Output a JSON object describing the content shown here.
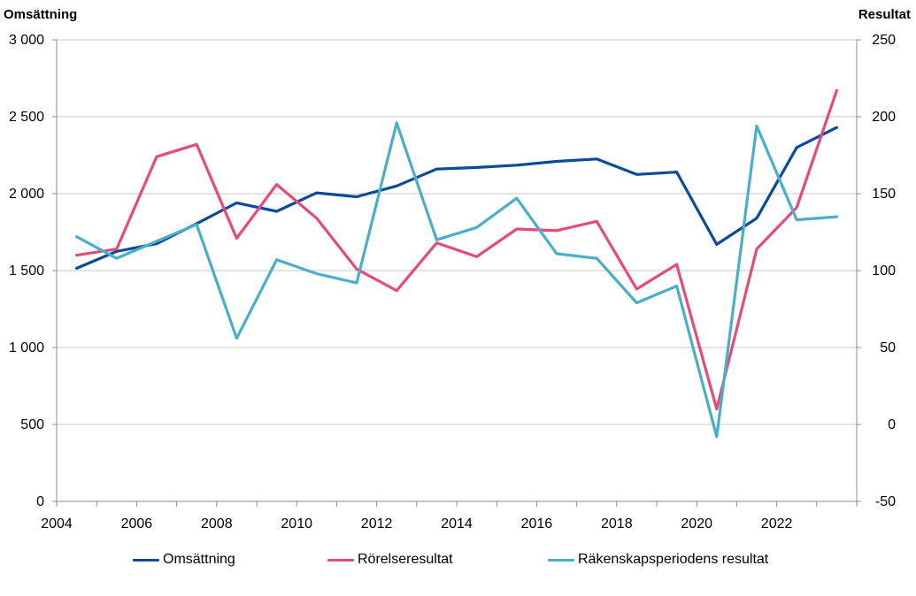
{
  "chart_data": {
    "type": "line",
    "title": "",
    "ylabel_left": "Omsättning",
    "ylabel_right": "Resultat",
    "ylim_left": [
      0,
      3000
    ],
    "ylim_right": [
      -50,
      250
    ],
    "yticks_left": [
      "0",
      "500",
      "1 000",
      "1 500",
      "2 000",
      "2 500",
      "3 000"
    ],
    "yticks_left_values": [
      0,
      500,
      1000,
      1500,
      2000,
      2500,
      3000
    ],
    "yticks_right": [
      "-50",
      "0",
      "50",
      "100",
      "150",
      "200",
      "250"
    ],
    "yticks_right_values": [
      -50,
      0,
      50,
      100,
      150,
      200,
      250
    ],
    "x": [
      2004,
      2005,
      2006,
      2007,
      2008,
      2009,
      2010,
      2011,
      2012,
      2013,
      2014,
      2015,
      2016,
      2017,
      2018,
      2019,
      2020,
      2021,
      2022,
      2023
    ],
    "xticks": [
      "2004",
      "2006",
      "2008",
      "2010",
      "2012",
      "2014",
      "2016",
      "2018",
      "2020",
      "2022"
    ],
    "grid": true,
    "legend_position": "bottom",
    "series": [
      {
        "name": "Omsättning",
        "axis": "left",
        "color": "#0a4a9a",
        "values": [
          1515,
          1625,
          1675,
          1805,
          1940,
          1885,
          2005,
          1980,
          2050,
          2160,
          2170,
          2185,
          2210,
          2225,
          2125,
          2140,
          1670,
          1840,
          2300,
          2430
        ]
      },
      {
        "name": "Rörelseresultat",
        "axis": "right",
        "color": "#e44b77",
        "values": [
          110,
          114,
          174,
          182,
          121,
          156,
          134,
          101,
          87,
          118,
          109,
          127,
          126,
          132,
          88,
          104,
          10,
          114,
          141,
          217
        ]
      },
      {
        "name": "Räkenskapsperiodens resultat",
        "axis": "right",
        "color": "#4aaec9",
        "values": [
          122,
          108,
          119,
          130,
          56,
          107,
          98,
          92,
          196,
          120,
          128,
          147,
          111,
          108,
          79,
          90,
          -8,
          194,
          133,
          135
        ]
      }
    ]
  }
}
